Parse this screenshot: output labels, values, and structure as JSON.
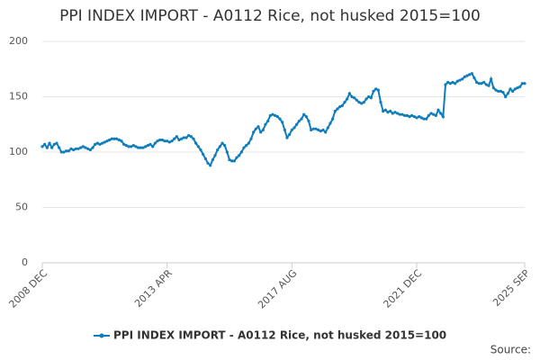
{
  "chart_data": {
    "type": "line",
    "title": "PPI INDEX IMPORT - A0112 Rice, not husked 2015=100",
    "source": "Source:",
    "categories": [
      "2008 DEC",
      null,
      null,
      null,
      null,
      null,
      null,
      null,
      null,
      null,
      null,
      null,
      null,
      null,
      null,
      null,
      null,
      null,
      null,
      null,
      null,
      null,
      null,
      null,
      null,
      null,
      null,
      null,
      null,
      null,
      null,
      null,
      null,
      null,
      null,
      null,
      null,
      null,
      null,
      null,
      null,
      null,
      null,
      null,
      null,
      null,
      null,
      null,
      null,
      null,
      null,
      null,
      "2013 APR",
      null,
      null,
      null,
      null,
      null,
      null,
      null,
      null,
      null,
      null,
      null,
      null,
      null,
      null,
      null,
      null,
      null,
      null,
      null,
      null,
      null,
      null,
      null,
      null,
      null,
      null,
      null,
      null,
      null,
      null,
      null,
      null,
      null,
      null,
      null,
      null,
      null,
      null,
      null,
      null,
      null,
      null,
      null,
      null,
      null,
      null,
      null,
      null,
      null,
      null,
      null,
      "2017 AUG",
      null,
      null,
      null,
      null,
      null,
      null,
      null,
      null,
      null,
      null,
      null,
      null,
      null,
      null,
      null,
      null,
      null,
      null,
      null,
      null,
      null,
      null,
      null,
      null,
      null,
      null,
      null,
      null,
      null,
      null,
      null,
      null,
      null,
      null,
      null,
      null,
      null,
      null,
      null,
      null,
      null,
      null,
      null,
      null,
      null,
      null,
      null,
      null,
      null,
      null,
      null,
      "2021 DEC",
      null,
      null,
      null,
      null,
      null,
      null,
      null,
      null,
      null,
      null,
      null,
      null,
      null,
      null,
      null,
      null,
      null,
      null,
      null,
      null,
      null,
      null,
      null,
      null,
      null,
      null,
      null,
      null,
      null,
      null,
      null,
      null,
      null,
      null,
      null,
      null,
      null,
      null,
      null,
      null,
      null,
      null,
      null,
      null,
      "2025 SEP"
    ],
    "series": [
      {
        "name": "PPI INDEX IMPORT - A0112 Rice, not husked 2015=100",
        "color": "#0f7dbb",
        "values": [
          105,
          107,
          104,
          108,
          104,
          107,
          108,
          104,
          100,
          100,
          101,
          101,
          103,
          102,
          103,
          103,
          104,
          105,
          104,
          103,
          102,
          104,
          107,
          108,
          107,
          108,
          109,
          110,
          111,
          112,
          112,
          112,
          111,
          110,
          107,
          106,
          105,
          105,
          106,
          105,
          104,
          104,
          104,
          105,
          106,
          107,
          105,
          108,
          110,
          111,
          111,
          110,
          110,
          109,
          110,
          112,
          114,
          111,
          112,
          113,
          113,
          115,
          114,
          112,
          108,
          105,
          102,
          98,
          94,
          90,
          88,
          93,
          97,
          102,
          105,
          108,
          106,
          100,
          93,
          92,
          92,
          95,
          97,
          100,
          104,
          106,
          108,
          112,
          118,
          121,
          123,
          118,
          120,
          125,
          128,
          133,
          134,
          133,
          132,
          130,
          127,
          120,
          113,
          116,
          120,
          122,
          125,
          128,
          130,
          134,
          132,
          128,
          120,
          121,
          121,
          120,
          119,
          120,
          118,
          122,
          126,
          130,
          137,
          139,
          141,
          142,
          145,
          148,
          153,
          150,
          149,
          147,
          145,
          144,
          145,
          148,
          150,
          149,
          155,
          157,
          156,
          145,
          137,
          138,
          136,
          137,
          135,
          136,
          135,
          134,
          134,
          133,
          133,
          132,
          133,
          132,
          131,
          132,
          131,
          130,
          130,
          133,
          135,
          134,
          133,
          138,
          135,
          132,
          161,
          163,
          162,
          163,
          162,
          164,
          165,
          166,
          168,
          169,
          170,
          171,
          167,
          163,
          162,
          162,
          163,
          161,
          160,
          166,
          158,
          156,
          155,
          155,
          154,
          150,
          153,
          157,
          155,
          157,
          158,
          159,
          162,
          162
        ]
      }
    ],
    "ylim": [
      0,
      200
    ],
    "yticks": [
      0,
      50,
      100,
      150,
      200
    ],
    "grid": true
  }
}
